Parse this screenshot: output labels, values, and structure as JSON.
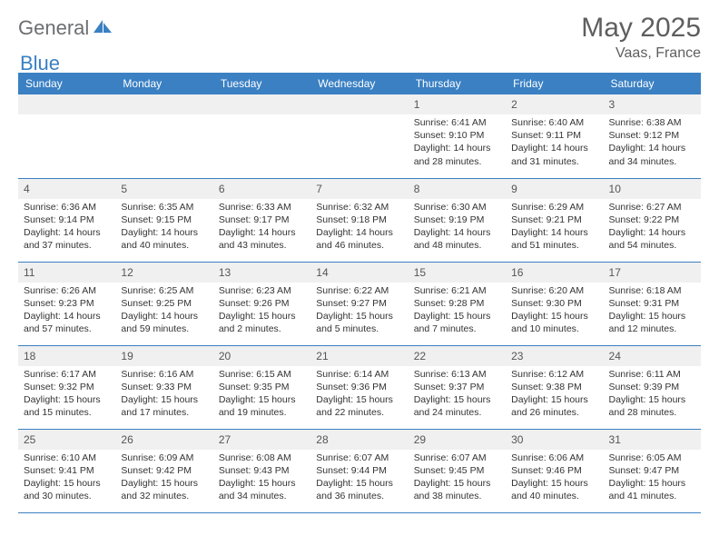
{
  "brand": {
    "part1": "General",
    "part2": "Blue",
    "logo_fill": "#3a80c3"
  },
  "title": "May 2025",
  "location": "Vaas, France",
  "colors": {
    "header_bg": "#3a80c3",
    "header_fg": "#ffffff",
    "daynum_bg": "#f0f0f0",
    "border": "#3a80c3",
    "text": "#333333",
    "muted": "#5e5e5e"
  },
  "day_headers": [
    "Sunday",
    "Monday",
    "Tuesday",
    "Wednesday",
    "Thursday",
    "Friday",
    "Saturday"
  ],
  "weeks": [
    [
      {
        "day": "",
        "lines": []
      },
      {
        "day": "",
        "lines": []
      },
      {
        "day": "",
        "lines": []
      },
      {
        "day": "",
        "lines": []
      },
      {
        "day": "1",
        "lines": [
          "Sunrise: 6:41 AM",
          "Sunset: 9:10 PM",
          "Daylight: 14 hours and 28 minutes."
        ]
      },
      {
        "day": "2",
        "lines": [
          "Sunrise: 6:40 AM",
          "Sunset: 9:11 PM",
          "Daylight: 14 hours and 31 minutes."
        ]
      },
      {
        "day": "3",
        "lines": [
          "Sunrise: 6:38 AM",
          "Sunset: 9:12 PM",
          "Daylight: 14 hours and 34 minutes."
        ]
      }
    ],
    [
      {
        "day": "4",
        "lines": [
          "Sunrise: 6:36 AM",
          "Sunset: 9:14 PM",
          "Daylight: 14 hours and 37 minutes."
        ]
      },
      {
        "day": "5",
        "lines": [
          "Sunrise: 6:35 AM",
          "Sunset: 9:15 PM",
          "Daylight: 14 hours and 40 minutes."
        ]
      },
      {
        "day": "6",
        "lines": [
          "Sunrise: 6:33 AM",
          "Sunset: 9:17 PM",
          "Daylight: 14 hours and 43 minutes."
        ]
      },
      {
        "day": "7",
        "lines": [
          "Sunrise: 6:32 AM",
          "Sunset: 9:18 PM",
          "Daylight: 14 hours and 46 minutes."
        ]
      },
      {
        "day": "8",
        "lines": [
          "Sunrise: 6:30 AM",
          "Sunset: 9:19 PM",
          "Daylight: 14 hours and 48 minutes."
        ]
      },
      {
        "day": "9",
        "lines": [
          "Sunrise: 6:29 AM",
          "Sunset: 9:21 PM",
          "Daylight: 14 hours and 51 minutes."
        ]
      },
      {
        "day": "10",
        "lines": [
          "Sunrise: 6:27 AM",
          "Sunset: 9:22 PM",
          "Daylight: 14 hours and 54 minutes."
        ]
      }
    ],
    [
      {
        "day": "11",
        "lines": [
          "Sunrise: 6:26 AM",
          "Sunset: 9:23 PM",
          "Daylight: 14 hours and 57 minutes."
        ]
      },
      {
        "day": "12",
        "lines": [
          "Sunrise: 6:25 AM",
          "Sunset: 9:25 PM",
          "Daylight: 14 hours and 59 minutes."
        ]
      },
      {
        "day": "13",
        "lines": [
          "Sunrise: 6:23 AM",
          "Sunset: 9:26 PM",
          "Daylight: 15 hours and 2 minutes."
        ]
      },
      {
        "day": "14",
        "lines": [
          "Sunrise: 6:22 AM",
          "Sunset: 9:27 PM",
          "Daylight: 15 hours and 5 minutes."
        ]
      },
      {
        "day": "15",
        "lines": [
          "Sunrise: 6:21 AM",
          "Sunset: 9:28 PM",
          "Daylight: 15 hours and 7 minutes."
        ]
      },
      {
        "day": "16",
        "lines": [
          "Sunrise: 6:20 AM",
          "Sunset: 9:30 PM",
          "Daylight: 15 hours and 10 minutes."
        ]
      },
      {
        "day": "17",
        "lines": [
          "Sunrise: 6:18 AM",
          "Sunset: 9:31 PM",
          "Daylight: 15 hours and 12 minutes."
        ]
      }
    ],
    [
      {
        "day": "18",
        "lines": [
          "Sunrise: 6:17 AM",
          "Sunset: 9:32 PM",
          "Daylight: 15 hours and 15 minutes."
        ]
      },
      {
        "day": "19",
        "lines": [
          "Sunrise: 6:16 AM",
          "Sunset: 9:33 PM",
          "Daylight: 15 hours and 17 minutes."
        ]
      },
      {
        "day": "20",
        "lines": [
          "Sunrise: 6:15 AM",
          "Sunset: 9:35 PM",
          "Daylight: 15 hours and 19 minutes."
        ]
      },
      {
        "day": "21",
        "lines": [
          "Sunrise: 6:14 AM",
          "Sunset: 9:36 PM",
          "Daylight: 15 hours and 22 minutes."
        ]
      },
      {
        "day": "22",
        "lines": [
          "Sunrise: 6:13 AM",
          "Sunset: 9:37 PM",
          "Daylight: 15 hours and 24 minutes."
        ]
      },
      {
        "day": "23",
        "lines": [
          "Sunrise: 6:12 AM",
          "Sunset: 9:38 PM",
          "Daylight: 15 hours and 26 minutes."
        ]
      },
      {
        "day": "24",
        "lines": [
          "Sunrise: 6:11 AM",
          "Sunset: 9:39 PM",
          "Daylight: 15 hours and 28 minutes."
        ]
      }
    ],
    [
      {
        "day": "25",
        "lines": [
          "Sunrise: 6:10 AM",
          "Sunset: 9:41 PM",
          "Daylight: 15 hours and 30 minutes."
        ]
      },
      {
        "day": "26",
        "lines": [
          "Sunrise: 6:09 AM",
          "Sunset: 9:42 PM",
          "Daylight: 15 hours and 32 minutes."
        ]
      },
      {
        "day": "27",
        "lines": [
          "Sunrise: 6:08 AM",
          "Sunset: 9:43 PM",
          "Daylight: 15 hours and 34 minutes."
        ]
      },
      {
        "day": "28",
        "lines": [
          "Sunrise: 6:07 AM",
          "Sunset: 9:44 PM",
          "Daylight: 15 hours and 36 minutes."
        ]
      },
      {
        "day": "29",
        "lines": [
          "Sunrise: 6:07 AM",
          "Sunset: 9:45 PM",
          "Daylight: 15 hours and 38 minutes."
        ]
      },
      {
        "day": "30",
        "lines": [
          "Sunrise: 6:06 AM",
          "Sunset: 9:46 PM",
          "Daylight: 15 hours and 40 minutes."
        ]
      },
      {
        "day": "31",
        "lines": [
          "Sunrise: 6:05 AM",
          "Sunset: 9:47 PM",
          "Daylight: 15 hours and 41 minutes."
        ]
      }
    ]
  ]
}
